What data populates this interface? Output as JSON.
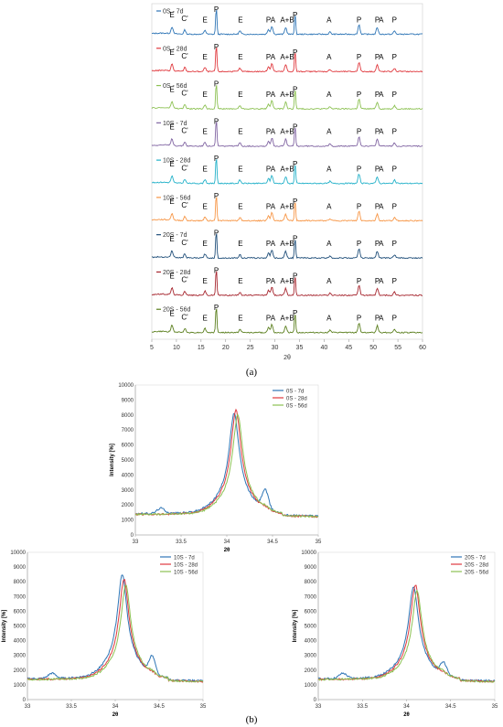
{
  "figure": {
    "panel_a_label": "(a)",
    "panel_b_label": "(b)"
  },
  "colors": {
    "0S - 7d": "#2E75B6",
    "0S - 28d": "#E0393E",
    "0S - 56d": "#8CC152",
    "10S - 7d": "#8064A2",
    "10S - 28d": "#23B1C9",
    "10S - 56d": "#F79646",
    "20S - 7d": "#1F4E79",
    "20S - 28d": "#A6252E",
    "20S - 56d": "#5B7F1E",
    "zoom_7d": "#2E75B6",
    "zoom_28d": "#E0393E",
    "zoom_56d": "#8CC152"
  },
  "chart_data": [
    {
      "type": "line",
      "panel": "a",
      "xlabel": "2θ",
      "ylabel": "",
      "xlim": [
        5,
        60
      ],
      "xticks": [
        5,
        10,
        15,
        20,
        25,
        30,
        35,
        40,
        45,
        50,
        55,
        60
      ],
      "series": [
        {
          "name": "0S - 7d"
        },
        {
          "name": "0S - 28d"
        },
        {
          "name": "0S - 56d"
        },
        {
          "name": "10S - 7d"
        },
        {
          "name": "10S - 28d"
        },
        {
          "name": "10S - 56d"
        },
        {
          "name": "20S - 7d"
        },
        {
          "name": "20S - 28d"
        },
        {
          "name": "20S - 56d"
        }
      ],
      "peaks": [
        {
          "x": 9.1,
          "h": 0.25
        },
        {
          "x": 11.7,
          "h": 0.15
        },
        {
          "x": 15.8,
          "h": 0.15
        },
        {
          "x": 18.1,
          "h": 1.0
        },
        {
          "x": 22.9,
          "h": 0.12
        },
        {
          "x": 28.7,
          "h": 0.18
        },
        {
          "x": 29.4,
          "h": 0.3
        },
        {
          "x": 32.2,
          "h": 0.25
        },
        {
          "x": 34.1,
          "h": 0.75
        },
        {
          "x": 41.2,
          "h": 0.08
        },
        {
          "x": 47.1,
          "h": 0.35
        },
        {
          "x": 50.8,
          "h": 0.25
        },
        {
          "x": 54.3,
          "h": 0.12
        }
      ],
      "annotations": [
        {
          "text": "E",
          "x": 9.1
        },
        {
          "text": "C'",
          "x": 11.7
        },
        {
          "text": "E",
          "x": 15.8
        },
        {
          "text": "P",
          "x": 18.1
        },
        {
          "text": "E",
          "x": 23.0
        },
        {
          "text": "P",
          "x": 28.7
        },
        {
          "text": "A",
          "x": 29.6
        },
        {
          "text": "A+B",
          "x": 32.5
        },
        {
          "text": "P",
          "x": 34.1
        },
        {
          "text": "A",
          "x": 41.0
        },
        {
          "text": "P",
          "x": 47.1
        },
        {
          "text": "P",
          "x": 50.8
        },
        {
          "text": "A",
          "x": 51.6
        },
        {
          "text": "P",
          "x": 54.3
        }
      ]
    },
    {
      "type": "line",
      "panel": "b-top",
      "xlabel": "2θ",
      "ylabel": "Intensity [%]",
      "xlim": [
        33,
        35
      ],
      "ylim": [
        0,
        10000
      ],
      "xticks": [
        33,
        33.5,
        34,
        34.5,
        35
      ],
      "yticks": [
        0,
        1000,
        2000,
        3000,
        4000,
        5000,
        6000,
        7000,
        8000,
        9000,
        10000
      ],
      "series": [
        {
          "name": "0S - 7d",
          "peak_x": 34.08,
          "peak_y": 8100,
          "base": 1400,
          "shoulder": 2800
        },
        {
          "name": "0S - 28d",
          "peak_x": 34.1,
          "peak_y": 8300,
          "base": 1350,
          "shoulder": 1500
        },
        {
          "name": "0S - 56d",
          "peak_x": 34.12,
          "peak_y": 8000,
          "base": 1350,
          "shoulder": 1500
        }
      ]
    },
    {
      "type": "line",
      "panel": "b-left",
      "xlabel": "2θ",
      "ylabel": "Intensity [%]",
      "xlim": [
        33,
        35
      ],
      "ylim": [
        0,
        10000
      ],
      "xticks": [
        33,
        33.5,
        34,
        34.5,
        35
      ],
      "yticks": [
        0,
        1000,
        2000,
        3000,
        4000,
        5000,
        6000,
        7000,
        8000,
        9000,
        10000
      ],
      "series": [
        {
          "name": "10S - 7d",
          "peak_x": 34.08,
          "peak_y": 8500,
          "base": 1400,
          "shoulder": 2700
        },
        {
          "name": "10S - 28d",
          "peak_x": 34.1,
          "peak_y": 8200,
          "base": 1350,
          "shoulder": 1500
        },
        {
          "name": "10S - 56d",
          "peak_x": 34.12,
          "peak_y": 7800,
          "base": 1350,
          "shoulder": 1500
        }
      ]
    },
    {
      "type": "line",
      "panel": "b-right",
      "xlabel": "2θ",
      "ylabel": "Intensity [%]",
      "xlim": [
        33,
        35
      ],
      "ylim": [
        0,
        10000
      ],
      "xticks": [
        33,
        33.5,
        34,
        34.5,
        35
      ],
      "yticks": [
        0,
        1000,
        2000,
        3000,
        4000,
        5000,
        6000,
        7000,
        8000,
        9000,
        10000
      ],
      "series": [
        {
          "name": "20S - 7d",
          "peak_x": 34.08,
          "peak_y": 7700,
          "base": 1400,
          "shoulder": 2300
        },
        {
          "name": "20S - 28d",
          "peak_x": 34.1,
          "peak_y": 7800,
          "base": 1350,
          "shoulder": 1500
        },
        {
          "name": "20S - 56d",
          "peak_x": 34.12,
          "peak_y": 7400,
          "base": 1350,
          "shoulder": 1500
        }
      ]
    }
  ]
}
